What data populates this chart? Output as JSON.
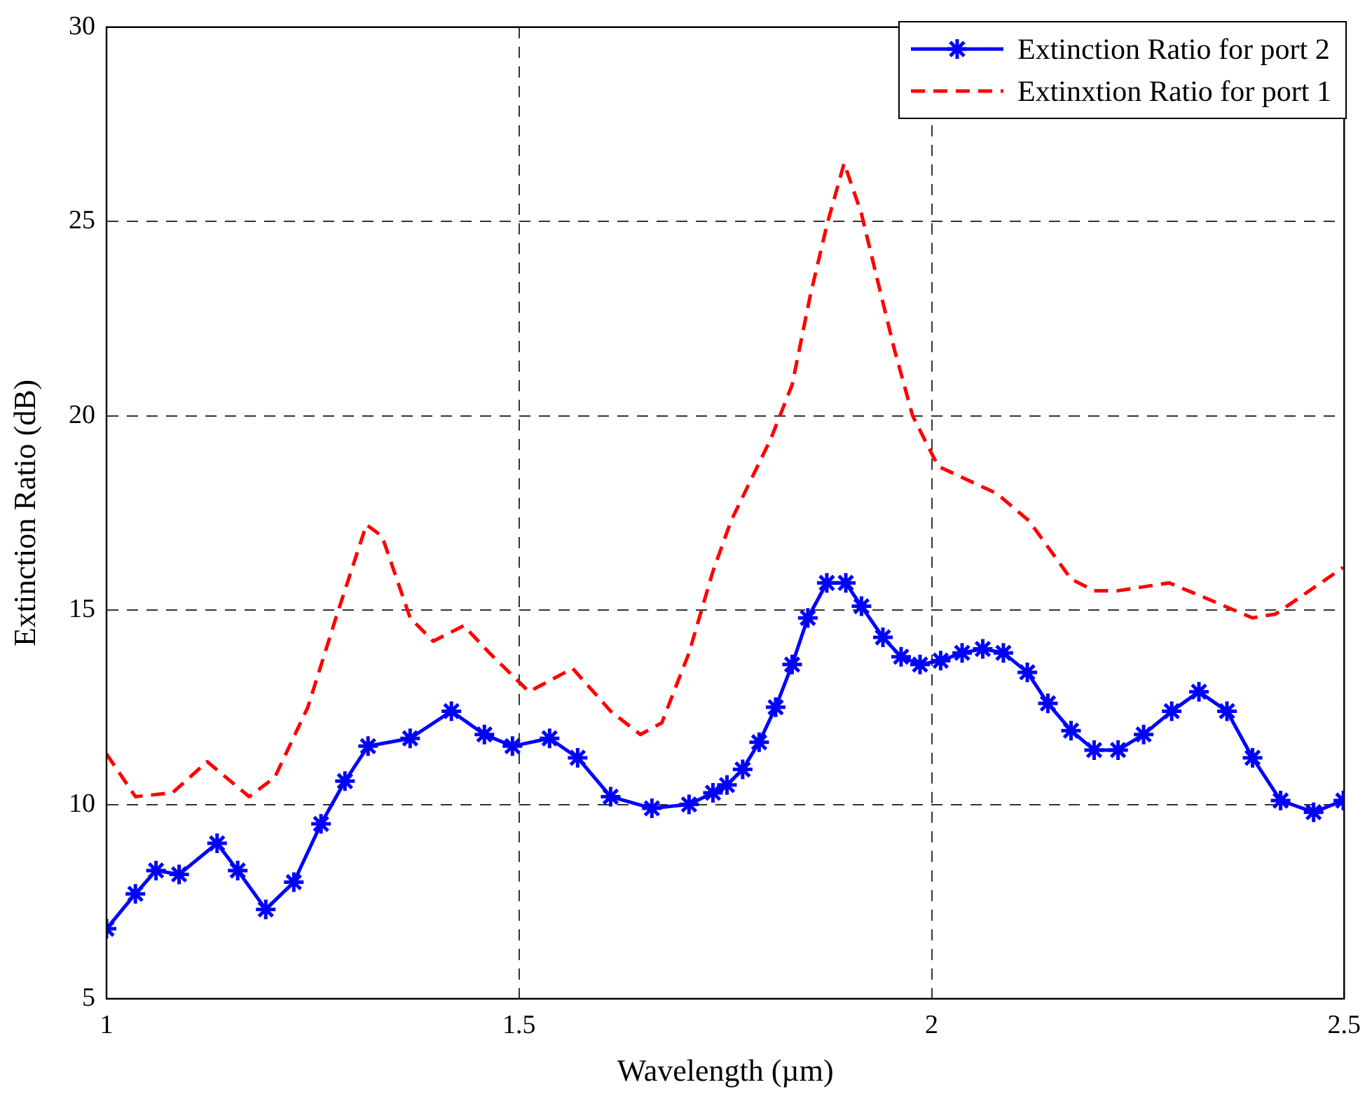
{
  "chart_data": {
    "type": "line",
    "xlabel": "Wavelength (µm)",
    "ylabel": "Extinction Ratio (dB)",
    "xlim": [
      1,
      2.5
    ],
    "xticks": [
      1,
      1.5,
      2,
      2.5
    ],
    "ylim": [
      5,
      30
    ],
    "yticks": [
      5,
      10,
      15,
      20,
      25,
      30
    ],
    "grid": true,
    "legend": "top right",
    "series": [
      {
        "name": "Extinction Ratio for port 2",
        "color": "#0000ff",
        "marker": "cross",
        "line_style": "solid",
        "x": [
          1.0,
          1.035,
          1.06,
          1.088,
          1.134,
          1.159,
          1.193,
          1.227,
          1.26,
          1.289,
          1.317,
          1.368,
          1.418,
          1.458,
          1.492,
          1.537,
          1.571,
          1.611,
          1.661,
          1.706,
          1.735,
          1.752,
          1.771,
          1.791,
          1.811,
          1.831,
          1.85,
          1.873,
          1.896,
          1.915,
          1.941,
          1.963,
          1.986,
          2.011,
          2.037,
          2.062,
          2.087,
          2.116,
          2.141,
          2.169,
          2.197,
          2.226,
          2.257,
          2.291,
          2.324,
          2.358,
          2.389,
          2.423,
          2.463,
          2.499
        ],
        "values": [
          6.8,
          7.7,
          8.3,
          8.2,
          9.0,
          8.3,
          7.3,
          8.0,
          9.5,
          10.6,
          11.5,
          11.7,
          12.4,
          11.8,
          11.5,
          11.7,
          11.2,
          10.2,
          9.9,
          10.0,
          10.3,
          10.5,
          10.9,
          11.6,
          12.5,
          13.6,
          14.8,
          15.7,
          15.7,
          15.1,
          14.3,
          13.8,
          13.6,
          13.7,
          13.9,
          14.0,
          13.9,
          13.4,
          12.6,
          11.9,
          11.4,
          11.4,
          11.8,
          12.4,
          12.9,
          12.4,
          11.2,
          10.1,
          9.8,
          10.1
        ]
      },
      {
        "name": "Extinxtion Ratio for port 1",
        "color": "#ff0000",
        "marker": "none",
        "line_style": "dashed",
        "x": [
          1.0,
          1.035,
          1.08,
          1.122,
          1.173,
          1.204,
          1.244,
          1.278,
          1.315,
          1.334,
          1.368,
          1.396,
          1.433,
          1.464,
          1.512,
          1.565,
          1.611,
          1.647,
          1.673,
          1.706,
          1.735,
          1.757,
          1.805,
          1.831,
          1.853,
          1.873,
          1.894,
          1.915,
          1.932,
          1.955,
          1.977,
          2.008,
          2.079,
          2.118,
          2.169,
          2.197,
          2.226,
          2.288,
          2.322,
          2.389,
          2.417,
          2.499
        ],
        "values": [
          11.3,
          10.2,
          10.3,
          11.1,
          10.2,
          10.7,
          12.5,
          14.8,
          17.2,
          16.9,
          14.8,
          14.2,
          14.6,
          13.9,
          12.9,
          13.5,
          12.4,
          11.8,
          12.1,
          13.9,
          16.0,
          17.3,
          19.4,
          20.8,
          23.1,
          24.9,
          26.5,
          25.2,
          23.7,
          21.7,
          20.0,
          18.7,
          18.0,
          17.3,
          15.8,
          15.5,
          15.5,
          15.7,
          15.4,
          14.8,
          14.9,
          16.1
        ]
      }
    ]
  }
}
